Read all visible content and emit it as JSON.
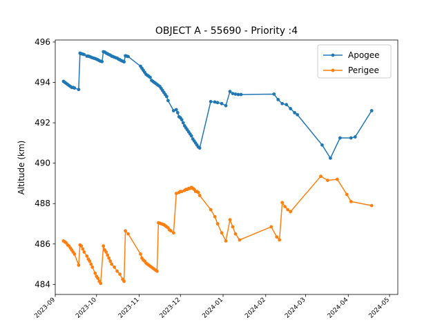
{
  "chart_data": {
    "type": "line",
    "title": "OBJECT A - 55690 - Priority :4",
    "xlabel": "",
    "ylabel": "Altitude (km)",
    "xlim": [
      "2023-09-01",
      "2024-05-07"
    ],
    "ylim": [
      483.5,
      496.1
    ],
    "x_ticks": [
      "2023-09",
      "2023-10",
      "2023-11",
      "2023-12",
      "2024-01",
      "2024-02",
      "2024-03",
      "2024-04",
      "2024-05"
    ],
    "y_ticks": [
      484,
      486,
      488,
      490,
      492,
      494,
      496
    ],
    "grid": false,
    "legend": "top-right",
    "series": [
      {
        "name": "Apogee",
        "color": "#1f77b4",
        "points": [
          [
            "2023-09-07",
            494.05
          ],
          [
            "2023-09-08",
            494.0
          ],
          [
            "2023-09-09",
            493.95
          ],
          [
            "2023-09-10",
            493.9
          ],
          [
            "2023-09-11",
            493.85
          ],
          [
            "2023-09-12",
            493.8
          ],
          [
            "2023-09-13",
            493.75
          ],
          [
            "2023-09-14",
            493.75
          ],
          [
            "2023-09-15",
            493.72
          ],
          [
            "2023-09-18",
            493.65
          ],
          [
            "2023-09-19",
            495.45
          ],
          [
            "2023-09-20",
            495.42
          ],
          [
            "2023-09-21",
            495.4
          ],
          [
            "2023-09-22",
            495.38
          ],
          [
            "2023-09-24",
            495.3
          ],
          [
            "2023-09-25",
            495.3
          ],
          [
            "2023-09-26",
            495.28
          ],
          [
            "2023-09-27",
            495.25
          ],
          [
            "2023-09-28",
            495.22
          ],
          [
            "2023-09-29",
            495.2
          ],
          [
            "2023-09-30",
            495.18
          ],
          [
            "2023-10-01",
            495.15
          ],
          [
            "2023-10-02",
            495.12
          ],
          [
            "2023-10-03",
            495.08
          ],
          [
            "2023-10-04",
            495.05
          ],
          [
            "2023-10-05",
            495.03
          ],
          [
            "2023-10-06",
            495.52
          ],
          [
            "2023-10-07",
            495.5
          ],
          [
            "2023-10-08",
            495.45
          ],
          [
            "2023-10-09",
            495.42
          ],
          [
            "2023-10-10",
            495.38
          ],
          [
            "2023-10-11",
            495.35
          ],
          [
            "2023-10-12",
            495.3
          ],
          [
            "2023-10-13",
            495.28
          ],
          [
            "2023-10-14",
            495.25
          ],
          [
            "2023-10-15",
            495.22
          ],
          [
            "2023-10-16",
            495.2
          ],
          [
            "2023-10-17",
            495.15
          ],
          [
            "2023-10-18",
            495.12
          ],
          [
            "2023-10-19",
            495.08
          ],
          [
            "2023-10-20",
            495.05
          ],
          [
            "2023-10-21",
            495.02
          ],
          [
            "2023-10-22",
            495.32
          ],
          [
            "2023-10-23",
            495.3
          ],
          [
            "2023-10-24",
            495.28
          ],
          [
            "2023-11-02",
            494.8
          ],
          [
            "2023-11-03",
            494.7
          ],
          [
            "2023-11-04",
            494.6
          ],
          [
            "2023-11-05",
            494.5
          ],
          [
            "2023-11-06",
            494.4
          ],
          [
            "2023-11-07",
            494.35
          ],
          [
            "2023-11-08",
            494.3
          ],
          [
            "2023-11-09",
            494.25
          ],
          [
            "2023-11-10",
            494.1
          ],
          [
            "2023-11-11",
            494.05
          ],
          [
            "2023-11-12",
            494.0
          ],
          [
            "2023-11-13",
            493.95
          ],
          [
            "2023-11-14",
            493.9
          ],
          [
            "2023-11-15",
            493.85
          ],
          [
            "2023-11-16",
            493.8
          ],
          [
            "2023-11-17",
            493.7
          ],
          [
            "2023-11-18",
            493.6
          ],
          [
            "2023-11-19",
            493.5
          ],
          [
            "2023-11-20",
            493.4
          ],
          [
            "2023-11-21",
            493.3
          ],
          [
            "2023-11-22",
            493.1
          ],
          [
            "2023-11-26",
            492.6
          ],
          [
            "2023-11-28",
            492.65
          ],
          [
            "2023-11-29",
            492.5
          ],
          [
            "2023-11-30",
            492.3
          ],
          [
            "2023-12-01",
            492.25
          ],
          [
            "2023-12-02",
            492.15
          ],
          [
            "2023-12-03",
            492.0
          ],
          [
            "2023-12-04",
            491.85
          ],
          [
            "2023-12-05",
            491.75
          ],
          [
            "2023-12-06",
            491.65
          ],
          [
            "2023-12-07",
            491.55
          ],
          [
            "2023-12-08",
            491.45
          ],
          [
            "2023-12-09",
            491.35
          ],
          [
            "2023-12-10",
            491.2
          ],
          [
            "2023-12-11",
            491.1
          ],
          [
            "2023-12-12",
            491.0
          ],
          [
            "2023-12-13",
            490.9
          ],
          [
            "2023-12-14",
            490.8
          ],
          [
            "2023-12-15",
            490.75
          ],
          [
            "2023-12-23",
            493.05
          ],
          [
            "2023-12-26",
            493.03
          ],
          [
            "2023-12-28",
            493.0
          ],
          [
            "2023-12-31",
            492.95
          ],
          [
            "2024-01-03",
            492.85
          ],
          [
            "2024-01-06",
            493.55
          ],
          [
            "2024-01-08",
            493.45
          ],
          [
            "2024-01-10",
            493.42
          ],
          [
            "2024-01-12",
            493.4
          ],
          [
            "2024-01-14",
            493.4
          ],
          [
            "2024-02-07",
            493.42
          ],
          [
            "2024-02-10",
            493.15
          ],
          [
            "2024-02-13",
            492.95
          ],
          [
            "2024-02-16",
            492.9
          ],
          [
            "2024-02-19",
            492.7
          ],
          [
            "2024-02-22",
            492.5
          ],
          [
            "2024-02-24",
            492.4
          ],
          [
            "2024-03-13",
            490.9
          ],
          [
            "2024-03-19",
            490.25
          ],
          [
            "2024-03-26",
            491.25
          ],
          [
            "2024-04-03",
            491.25
          ],
          [
            "2024-04-06",
            491.3
          ],
          [
            "2024-04-18",
            492.6
          ]
        ]
      },
      {
        "name": "Perigee",
        "color": "#ff7f0e",
        "points": [
          [
            "2023-09-07",
            486.15
          ],
          [
            "2023-09-08",
            486.1
          ],
          [
            "2023-09-09",
            486.05
          ],
          [
            "2023-09-10",
            485.95
          ],
          [
            "2023-09-11",
            485.9
          ],
          [
            "2023-09-12",
            485.8
          ],
          [
            "2023-09-13",
            485.7
          ],
          [
            "2023-09-14",
            485.6
          ],
          [
            "2023-09-15",
            485.5
          ],
          [
            "2023-09-18",
            484.95
          ],
          [
            "2023-09-19",
            485.95
          ],
          [
            "2023-09-20",
            485.9
          ],
          [
            "2023-09-21",
            485.75
          ],
          [
            "2023-09-22",
            485.6
          ],
          [
            "2023-09-24",
            485.4
          ],
          [
            "2023-09-25",
            485.25
          ],
          [
            "2023-09-26",
            485.15
          ],
          [
            "2023-09-27",
            485.0
          ],
          [
            "2023-09-28",
            484.85
          ],
          [
            "2023-09-30",
            484.55
          ],
          [
            "2023-10-01",
            484.4
          ],
          [
            "2023-10-02",
            484.3
          ],
          [
            "2023-10-03",
            484.15
          ],
          [
            "2023-10-04",
            484.05
          ],
          [
            "2023-10-06",
            485.9
          ],
          [
            "2023-10-07",
            485.7
          ],
          [
            "2023-10-08",
            485.6
          ],
          [
            "2023-10-09",
            485.45
          ],
          [
            "2023-10-10",
            485.3
          ],
          [
            "2023-10-11",
            485.15
          ],
          [
            "2023-10-12",
            485.0
          ],
          [
            "2023-10-14",
            484.85
          ],
          [
            "2023-10-16",
            484.65
          ],
          [
            "2023-10-18",
            484.5
          ],
          [
            "2023-10-20",
            484.25
          ],
          [
            "2023-10-21",
            484.15
          ],
          [
            "2023-10-22",
            486.65
          ],
          [
            "2023-10-24",
            486.5
          ],
          [
            "2023-11-02",
            485.5
          ],
          [
            "2023-11-03",
            485.3
          ],
          [
            "2023-11-04",
            485.2
          ],
          [
            "2023-11-05",
            485.15
          ],
          [
            "2023-11-06",
            485.05
          ],
          [
            "2023-11-07",
            485.0
          ],
          [
            "2023-11-08",
            484.95
          ],
          [
            "2023-11-09",
            484.9
          ],
          [
            "2023-11-10",
            484.85
          ],
          [
            "2023-11-11",
            484.8
          ],
          [
            "2023-11-12",
            484.75
          ],
          [
            "2023-11-13",
            484.7
          ],
          [
            "2023-11-14",
            484.65
          ],
          [
            "2023-11-15",
            487.05
          ],
          [
            "2023-11-16",
            487.03
          ],
          [
            "2023-11-17",
            487.0
          ],
          [
            "2023-11-18",
            486.98
          ],
          [
            "2023-11-19",
            486.95
          ],
          [
            "2023-11-20",
            486.9
          ],
          [
            "2023-11-21",
            486.85
          ],
          [
            "2023-11-22",
            486.8
          ],
          [
            "2023-11-23",
            486.7
          ],
          [
            "2023-11-24",
            486.65
          ],
          [
            "2023-11-26",
            486.55
          ],
          [
            "2023-11-28",
            488.5
          ],
          [
            "2023-11-30",
            488.55
          ],
          [
            "2023-12-01",
            488.6
          ],
          [
            "2023-12-02",
            488.6
          ],
          [
            "2023-12-04",
            488.65
          ],
          [
            "2023-12-05",
            488.7
          ],
          [
            "2023-12-06",
            488.7
          ],
          [
            "2023-12-07",
            488.75
          ],
          [
            "2023-12-08",
            488.75
          ],
          [
            "2023-12-09",
            488.8
          ],
          [
            "2023-12-10",
            488.75
          ],
          [
            "2023-12-11",
            488.7
          ],
          [
            "2023-12-12",
            488.6
          ],
          [
            "2023-12-13",
            488.6
          ],
          [
            "2023-12-14",
            488.55
          ],
          [
            "2023-12-15",
            488.4
          ],
          [
            "2023-12-23",
            487.7
          ],
          [
            "2023-12-26",
            487.35
          ],
          [
            "2023-12-28",
            487.0
          ],
          [
            "2023-12-31",
            486.55
          ],
          [
            "2024-01-03",
            486.15
          ],
          [
            "2024-01-06",
            487.2
          ],
          [
            "2024-01-08",
            486.85
          ],
          [
            "2024-01-10",
            486.5
          ],
          [
            "2024-01-13",
            486.2
          ],
          [
            "2024-02-05",
            486.85
          ],
          [
            "2024-02-09",
            486.35
          ],
          [
            "2024-02-11",
            486.2
          ],
          [
            "2024-02-13",
            488.05
          ],
          [
            "2024-02-15",
            487.85
          ],
          [
            "2024-02-17",
            487.7
          ],
          [
            "2024-02-19",
            487.6
          ],
          [
            "2024-03-12",
            489.35
          ],
          [
            "2024-03-17",
            489.15
          ],
          [
            "2024-03-24",
            489.2
          ],
          [
            "2024-03-31",
            488.45
          ],
          [
            "2024-04-03",
            488.1
          ],
          [
            "2024-04-18",
            487.9
          ]
        ]
      }
    ]
  }
}
